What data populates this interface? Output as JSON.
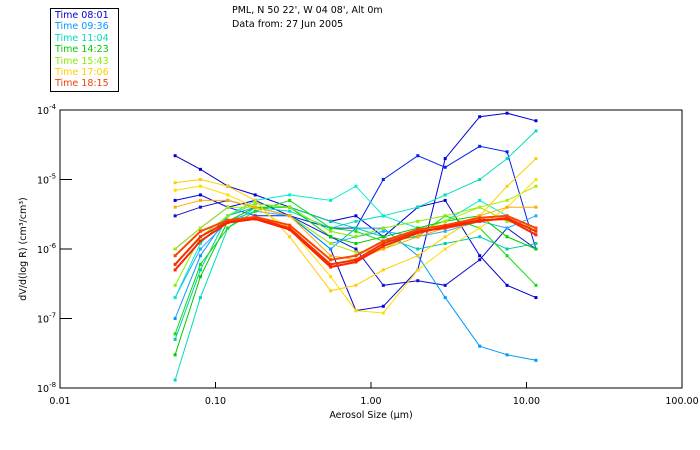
{
  "header": {
    "line1": "PML, N 50 22', W 04 08', Alt 0m",
    "line2": "Data from: 27 Jun 2005"
  },
  "legend": [
    {
      "label": "Time 08:01",
      "color": "#0000cc"
    },
    {
      "label": "Time 09:36",
      "color": "#0099ff"
    },
    {
      "label": "Time 11:04",
      "color": "#00ddbb"
    },
    {
      "label": "Time 14:23",
      "color": "#00cc00"
    },
    {
      "label": "Time 15:43",
      "color": "#88ee00"
    },
    {
      "label": "Time 17:06",
      "color": "#ffcc00"
    },
    {
      "label": "Time 18:15",
      "color": "#ee4400"
    }
  ],
  "chart_data": {
    "type": "line",
    "title": "",
    "xlabel": "Aerosol Size (µm)",
    "ylabel": "dV/d(log R) (cm³/cm³)",
    "xscale": "log",
    "yscale": "log",
    "xlim": [
      0.01,
      100
    ],
    "ylim": [
      1e-08,
      0.0001
    ],
    "xticks": [
      "0.01",
      "0.10",
      "1.00",
      "10.00",
      "100.00"
    ],
    "yticks": [
      {
        "base": "10",
        "exp": "-4"
      },
      {
        "base": "10",
        "exp": "-5"
      },
      {
        "base": "10",
        "exp": "-6"
      },
      {
        "base": "10",
        "exp": "-7"
      },
      {
        "base": "10",
        "exp": "-8"
      }
    ],
    "x": [
      0.055,
      0.08,
      0.12,
      0.18,
      0.3,
      0.55,
      0.8,
      1.2,
      2.0,
      3.0,
      5.0,
      7.5,
      11.5
    ],
    "series": [
      {
        "name": "08:01 a",
        "color": "#0000cc",
        "values": [
          2.2e-05,
          1.4e-05,
          8e-06,
          6e-06,
          4e-06,
          2.5e-06,
          3e-06,
          1.5e-06,
          4e-06,
          5e-06,
          8e-07,
          3e-07,
          2e-07
        ]
      },
      {
        "name": "08:01 b",
        "color": "#0000dd",
        "values": [
          5e-06,
          6e-06,
          4e-06,
          5e-06,
          3e-06,
          1e-06,
          1.3e-07,
          1.5e-07,
          5e-07,
          2e-05,
          8e-05,
          9e-05,
          7e-05
        ]
      },
      {
        "name": "08:01 c",
        "color": "#1111cc",
        "values": [
          3e-06,
          4e-06,
          5e-06,
          4e-06,
          3e-06,
          1.5e-06,
          1e-06,
          3e-07,
          3.5e-07,
          3e-07,
          7e-07,
          2e-06,
          1e-06
        ]
      },
      {
        "name": "08:01 d",
        "color": "#0022ee",
        "values": [
          1e-06,
          2e-06,
          4e-06,
          3e-06,
          3e-06,
          2e-06,
          2e-06,
          1e-05,
          2.2e-05,
          1.5e-05,
          3e-05,
          2.5e-05,
          1e-06
        ]
      },
      {
        "name": "09:36 a",
        "color": "#0099ff",
        "values": [
          1e-07,
          8e-07,
          3e-06,
          4e-06,
          3e-06,
          1e-06,
          2e-06,
          2e-06,
          8e-07,
          2e-07,
          4e-08,
          3e-08,
          2.5e-08
        ]
      },
      {
        "name": "09:36 b",
        "color": "#22aaff",
        "values": [
          2e-07,
          1e-06,
          2.5e-06,
          3.5e-06,
          3e-06,
          1.2e-06,
          1.5e-06,
          1.8e-06,
          1.5e-06,
          1.8e-06,
          2.5e-06,
          2e-06,
          3e-06
        ]
      },
      {
        "name": "11:04 a",
        "color": "#00ddbb",
        "values": [
          1.3e-08,
          2e-07,
          2e-06,
          4e-06,
          3.5e-06,
          2e-06,
          2.5e-06,
          3e-06,
          4e-06,
          6e-06,
          1e-05,
          2e-05,
          5e-05
        ]
      },
      {
        "name": "11:04 b",
        "color": "#00ccaa",
        "values": [
          5e-08,
          5e-07,
          3e-06,
          4.5e-06,
          4e-06,
          2.5e-06,
          2e-06,
          1.5e-06,
          1e-06,
          1.2e-06,
          1.5e-06,
          1e-06,
          1.2e-06
        ]
      },
      {
        "name": "11:04 c",
        "color": "#00eecc",
        "values": [
          2e-07,
          1.2e-06,
          3e-06,
          5e-06,
          6e-06,
          5e-06,
          8e-06,
          3e-06,
          2e-06,
          2.5e-06,
          5e-06,
          3e-06,
          2e-06
        ]
      },
      {
        "name": "14:23 a",
        "color": "#00cc00",
        "values": [
          3e-08,
          4e-07,
          2.5e-06,
          4e-06,
          4e-06,
          1.5e-06,
          1.2e-06,
          1.5e-06,
          2e-06,
          2.5e-06,
          3e-06,
          1.5e-06,
          1e-06
        ]
      },
      {
        "name": "14:23 b",
        "color": "#11dd11",
        "values": [
          6e-08,
          6e-07,
          2e-06,
          3.5e-06,
          5e-06,
          2e-06,
          1.8e-06,
          1.3e-06,
          1.5e-06,
          3e-06,
          2e-06,
          8e-07,
          3e-07
        ]
      },
      {
        "name": "15:43 a",
        "color": "#88ee00",
        "values": [
          3e-07,
          1.5e-06,
          3e-06,
          4.5e-06,
          4e-06,
          1.8e-06,
          1.5e-06,
          2e-06,
          2.5e-06,
          3e-06,
          4e-06,
          2.5e-06,
          2e-06
        ]
      },
      {
        "name": "15:43 b",
        "color": "#aaee00",
        "values": [
          1e-06,
          2e-06,
          4e-06,
          4e-06,
          3e-06,
          1.2e-06,
          9e-07,
          1e-06,
          1.8e-06,
          2.5e-06,
          4e-06,
          5e-06,
          8e-06
        ]
      },
      {
        "name": "17:06 a",
        "color": "#ffcc00",
        "values": [
          9e-06,
          1e-05,
          8e-06,
          5e-06,
          1.5e-06,
          2.5e-07,
          3e-07,
          5e-07,
          8e-07,
          1.5e-06,
          3e-06,
          8e-06,
          2e-05
        ]
      },
      {
        "name": "17:06 b",
        "color": "#ffdd00",
        "values": [
          7e-06,
          8e-06,
          6e-06,
          4e-06,
          2e-06,
          4e-07,
          1.3e-07,
          1.2e-07,
          5e-07,
          1e-06,
          2e-06,
          4e-06,
          1e-05
        ]
      },
      {
        "name": "17:06 c",
        "color": "#ffaa00",
        "values": [
          4e-06,
          5e-06,
          5e-06,
          4e-06,
          3e-06,
          8e-07,
          7e-07,
          1e-06,
          1.5e-06,
          2e-06,
          3e-06,
          4e-06,
          4e-06
        ]
      },
      {
        "name": "18:15 a",
        "color": "#ee3300",
        "values": [
          6e-07,
          1.5e-06,
          2.5e-06,
          2.8e-06,
          2e-06,
          6e-07,
          7e-07,
          1.2e-06,
          1.8e-06,
          2e-06,
          2.5e-06,
          2.8e-06,
          1.8e-06
        ]
      },
      {
        "name": "18:15 b",
        "color": "#ff4400",
        "values": [
          8e-07,
          1.8e-06,
          2.6e-06,
          2.9e-06,
          2.2e-06,
          7e-07,
          8e-07,
          1.3e-06,
          1.9e-06,
          2.2e-06,
          2.8e-06,
          3e-06,
          2e-06
        ]
      },
      {
        "name": "18:15 c",
        "color": "#ff2200",
        "values": [
          5e-07,
          1.3e-06,
          2.4e-06,
          2.7e-06,
          1.9e-06,
          5.5e-07,
          6.5e-07,
          1.1e-06,
          1.7e-06,
          2.1e-06,
          2.6e-06,
          2.7e-06,
          1.6e-06
        ]
      }
    ]
  }
}
